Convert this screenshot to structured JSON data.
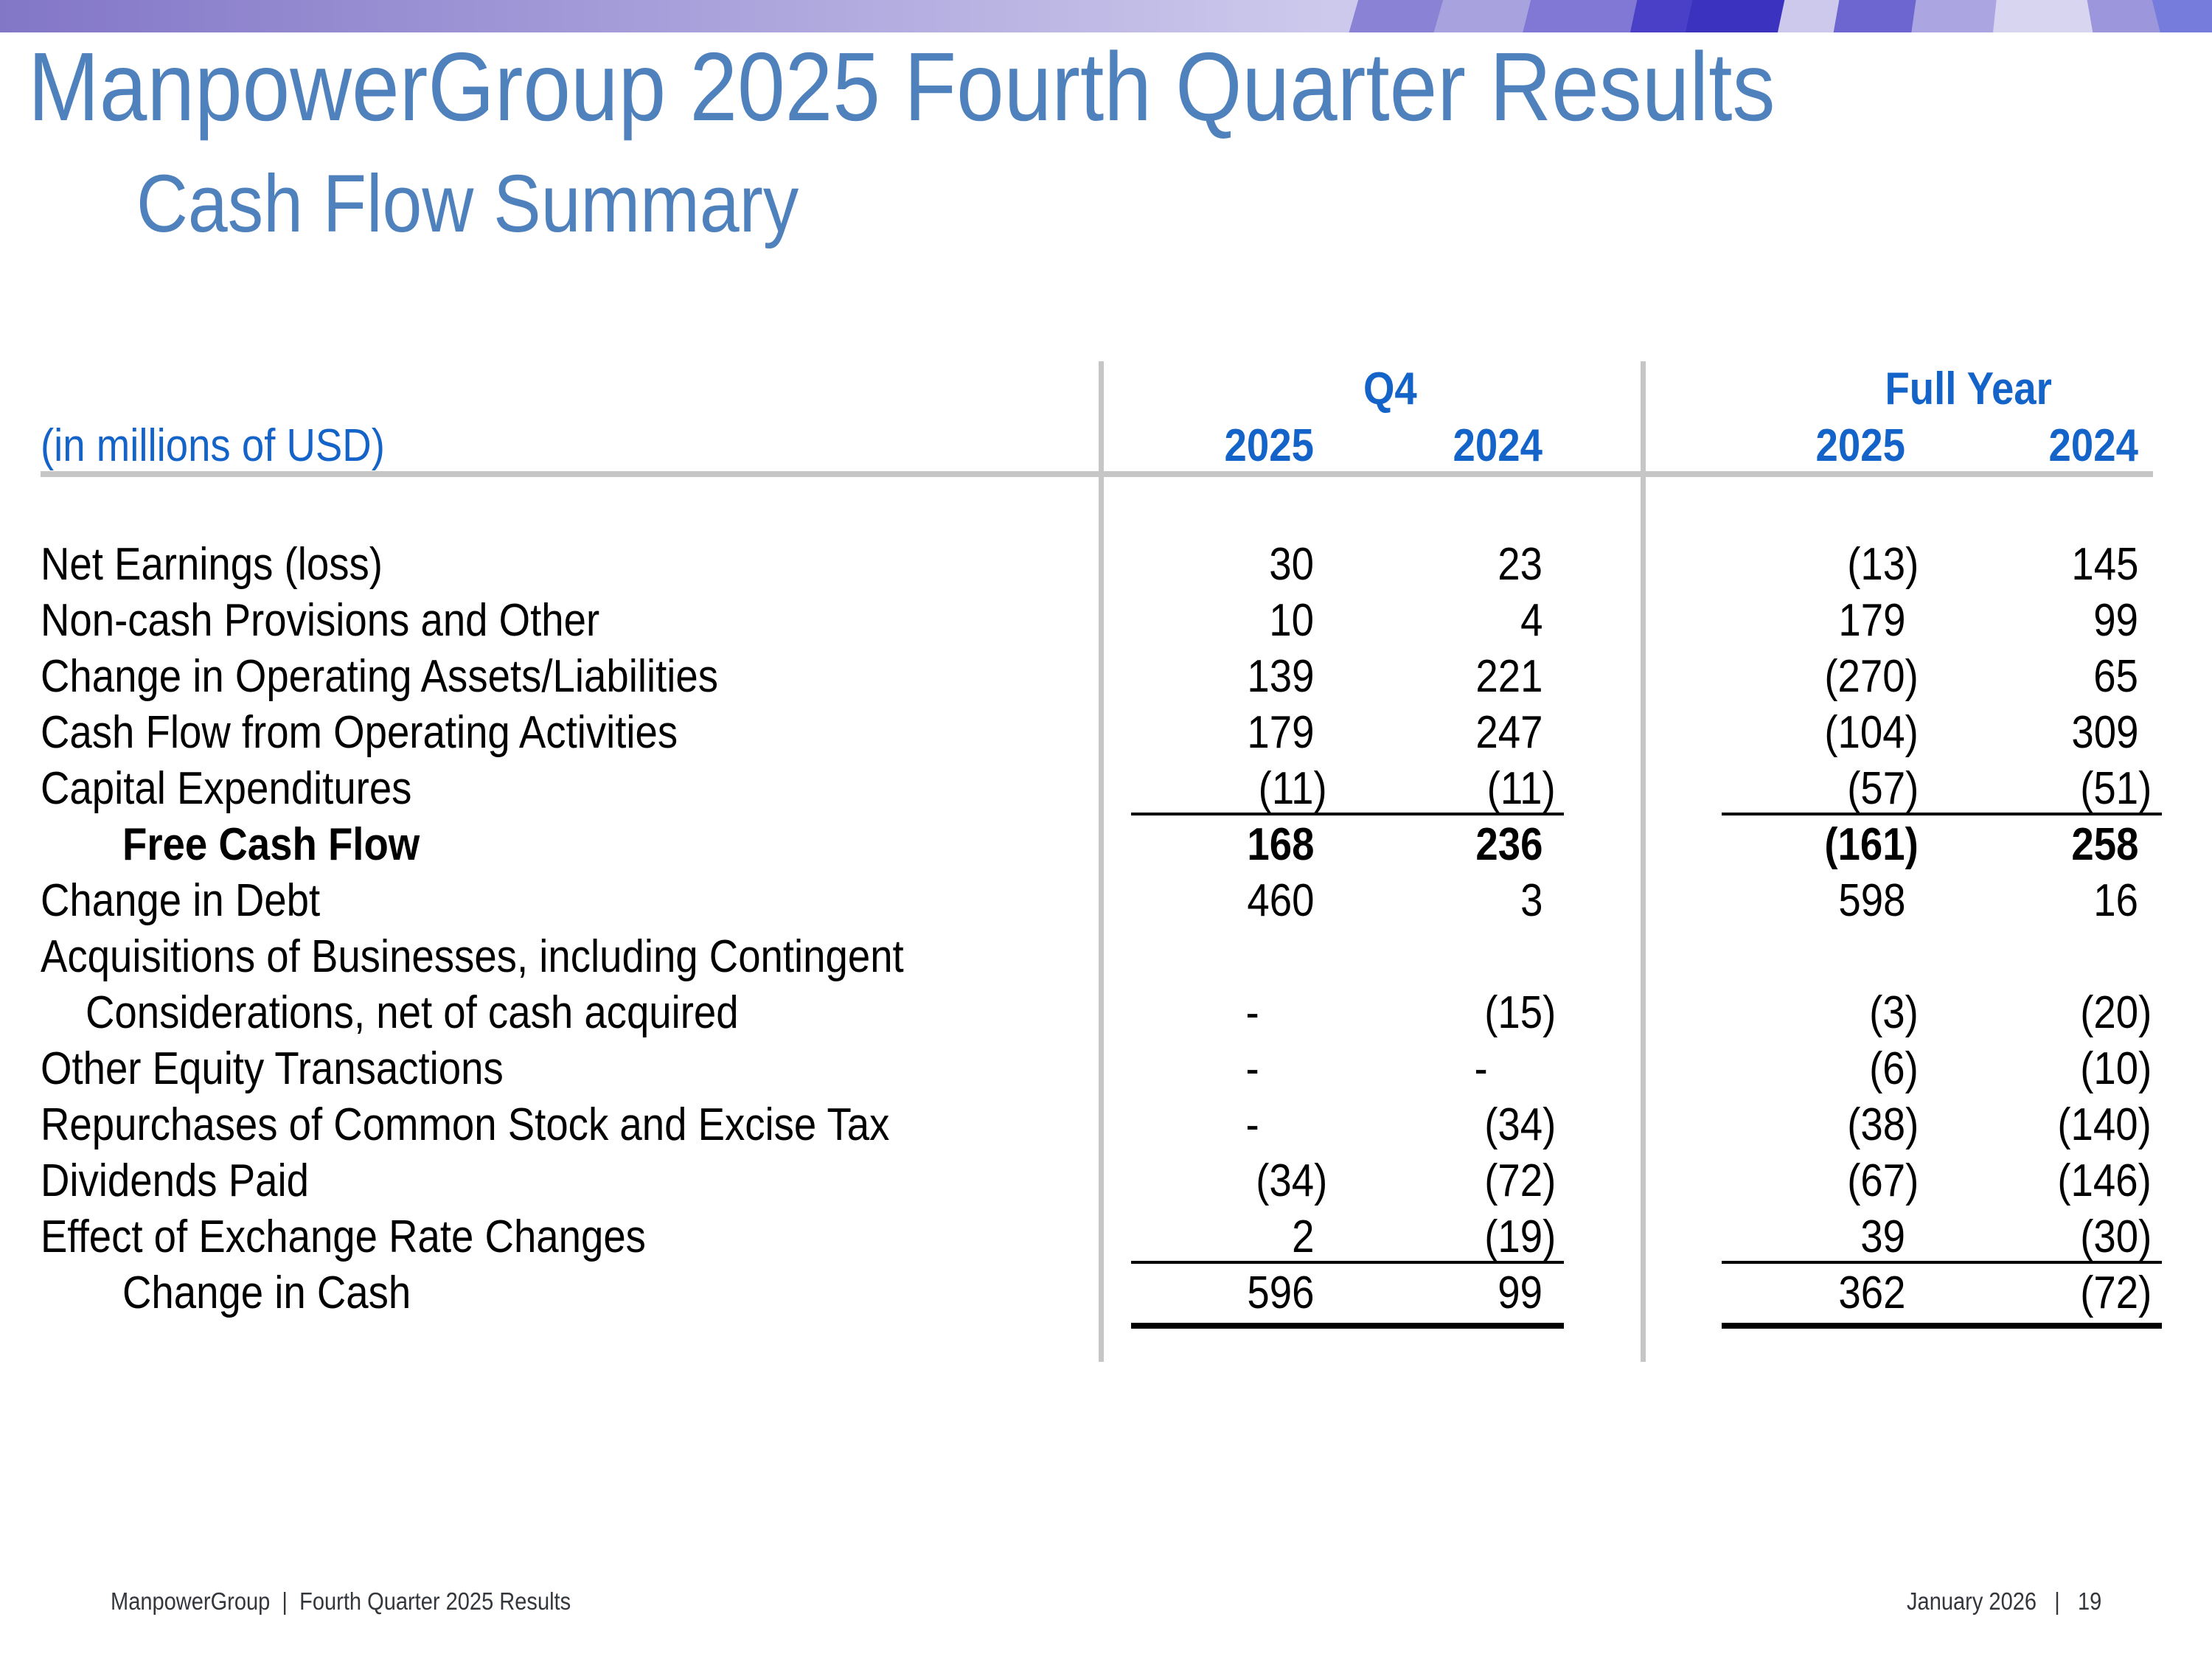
{
  "slide": {
    "title": "ManpowerGroup 2025 Fourth Quarter Results",
    "subtitle": "Cash Flow Summary"
  },
  "table": {
    "units_label": "(in millions of USD)",
    "col_groups": [
      {
        "label": "Q4"
      },
      {
        "label": "Full Year"
      }
    ],
    "col_years": [
      "2025",
      "2024",
      "2025",
      "2024"
    ],
    "rows": [
      {
        "label": "Net Earnings (loss)",
        "indent": 0,
        "bold": false,
        "values": [
          "30",
          "23",
          "(13)",
          "145"
        ]
      },
      {
        "label": "Non-cash Provisions and Other",
        "indent": 0,
        "bold": false,
        "values": [
          "10",
          "4",
          "179",
          "99"
        ]
      },
      {
        "label": "Change in Operating Assets/Liabilities",
        "indent": 0,
        "bold": false,
        "values": [
          "139",
          "221",
          "(270)",
          "65"
        ]
      },
      {
        "label": "Cash Flow from Operating Activities",
        "indent": 0,
        "bold": false,
        "values": [
          "179",
          "247",
          "(104)",
          "309"
        ]
      },
      {
        "label": "Capital Expenditures",
        "indent": 0,
        "bold": false,
        "values": [
          "(11)",
          "(11)",
          "(57)",
          "(51)"
        ],
        "rule_after": "thin"
      },
      {
        "label": "Free Cash Flow",
        "indent": 1,
        "bold": true,
        "values": [
          "168",
          "236",
          "(161)",
          "258"
        ]
      },
      {
        "label": "Change in Debt",
        "indent": 0,
        "bold": false,
        "values": [
          "460",
          "3",
          "598",
          "16"
        ]
      },
      {
        "label": "Acquisitions of Businesses, including Contingent",
        "indent": 0,
        "bold": false,
        "values": [
          "",
          "",
          "",
          ""
        ]
      },
      {
        "label": "Considerations, net of cash acquired",
        "indent": 2,
        "bold": false,
        "values": [
          "-",
          "(15)",
          "(3)",
          "(20)"
        ]
      },
      {
        "label": "Other Equity Transactions",
        "indent": 0,
        "bold": false,
        "values": [
          "-",
          "-",
          "(6)",
          "(10)"
        ]
      },
      {
        "label": "Repurchases of Common Stock and Excise Tax",
        "indent": 0,
        "bold": false,
        "values": [
          "-",
          "(34)",
          "(38)",
          "(140)"
        ]
      },
      {
        "label": "Dividends Paid",
        "indent": 0,
        "bold": false,
        "values": [
          "(34)",
          "(72)",
          "(67)",
          "(146)"
        ]
      },
      {
        "label": "Effect of Exchange Rate Changes",
        "indent": 0,
        "bold": false,
        "values": [
          "2",
          "(19)",
          "39",
          "(30)"
        ],
        "rule_after": "thin"
      },
      {
        "label": "Change in Cash",
        "indent": 1,
        "bold": false,
        "values": [
          "596",
          "99",
          "362",
          "(72)"
        ],
        "rule_after": "thick"
      }
    ]
  },
  "footer": {
    "left": "ManpowerGroup  |  Fourth Quarter 2025 Results",
    "right": "January 2026   |   19"
  },
  "colors": {
    "title_blue": "#4F81BD",
    "header_blue": "#1463C8",
    "rule_gray": "#C6C6C6",
    "footer_gray": "#33373C",
    "banner_base_left": "#8276C7",
    "banner_base_mid": "#A79FDA",
    "banner_base_light": "#CDC9EC",
    "banner_shapes": [
      "#8A82D4",
      "#A8A2DF",
      "#8078D4",
      "#4A40C8",
      "#3B33C0",
      "#6E66D0",
      "#ABA5E1",
      "#D8D5F1",
      "#9C96DD",
      "#767CDC"
    ]
  }
}
